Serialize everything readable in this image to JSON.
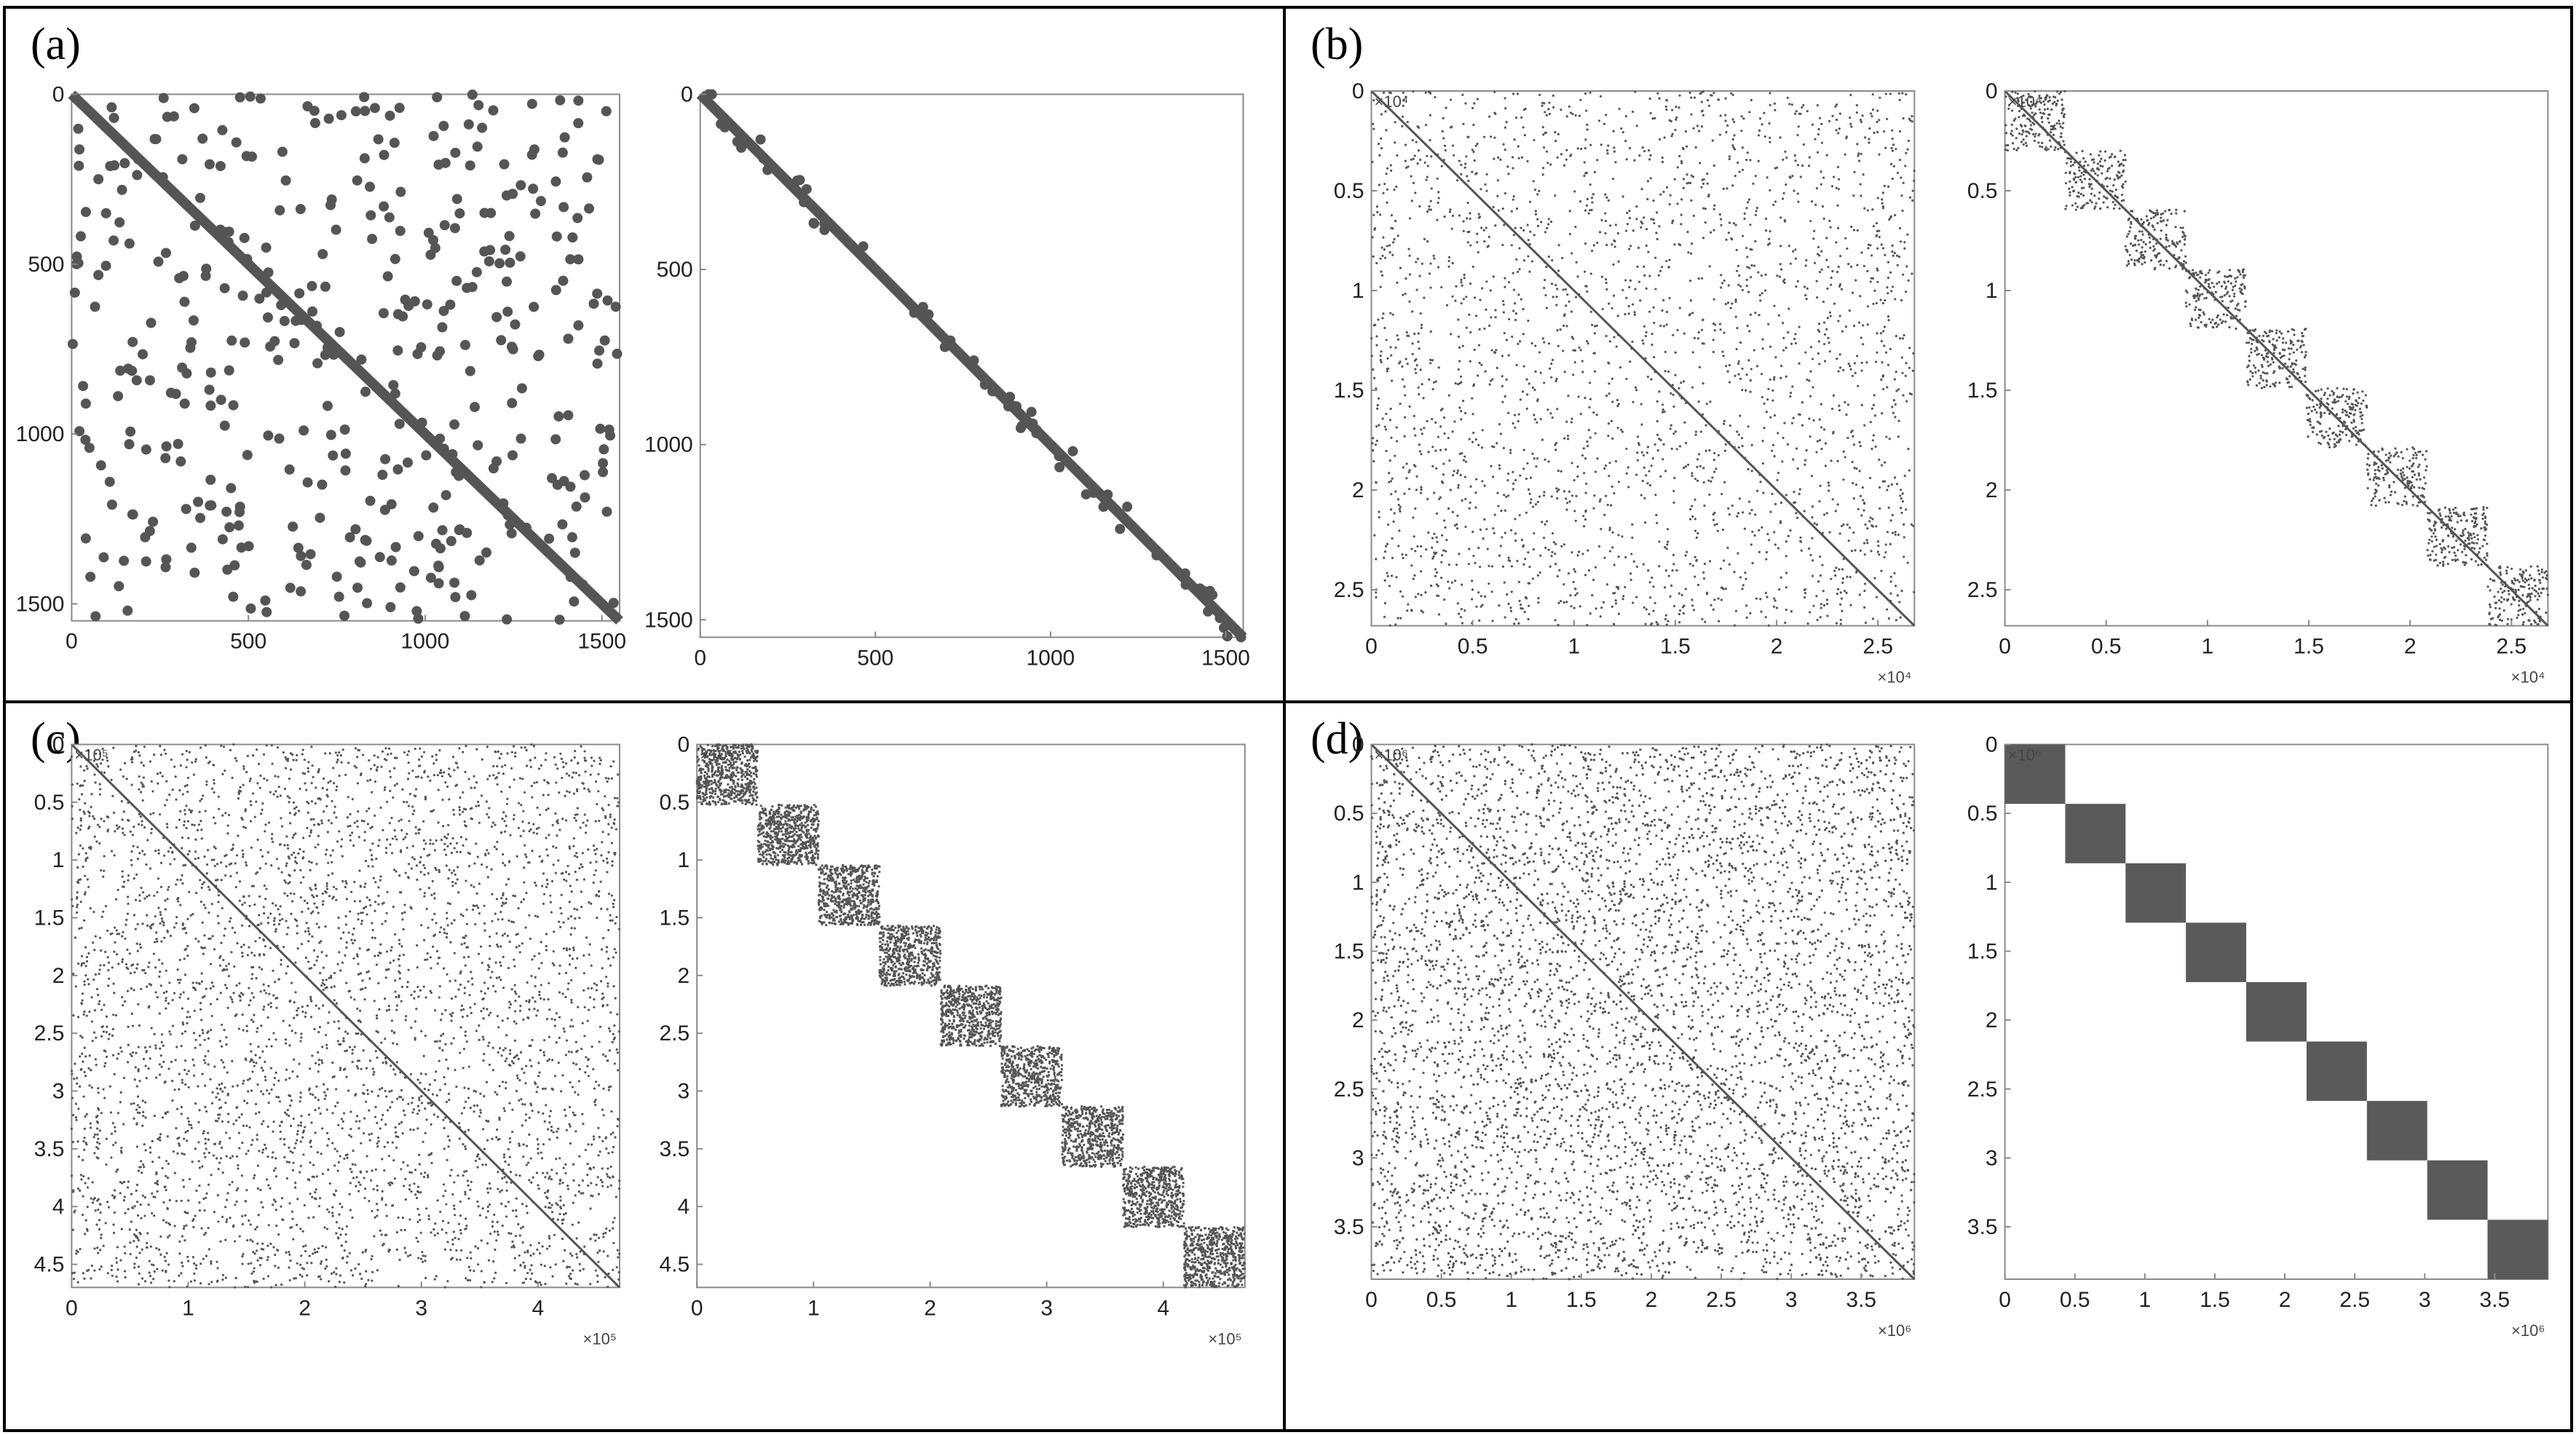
{
  "panels": [
    {
      "label": "(a)",
      "plots": [
        {
          "kind": "random",
          "n": 1550,
          "ticks": [
            "0",
            "500",
            "1000",
            "1500"
          ],
          "tick_values": [
            0,
            500,
            1000,
            1500
          ],
          "exponent": "",
          "blocks": 0,
          "nnz_dots": 420
        },
        {
          "kind": "band",
          "n": 1550,
          "ticks": [
            "0",
            "500",
            "1000",
            "1500"
          ],
          "tick_values": [
            0,
            500,
            1000,
            1500
          ],
          "exponent": "",
          "blocks": 0,
          "nnz_dots": 60
        }
      ]
    },
    {
      "label": "(b)",
      "plots": [
        {
          "kind": "random",
          "n": 2.68,
          "ticks": [
            "0",
            "0.5",
            "1",
            "1.5",
            "2",
            "2.5"
          ],
          "tick_values": [
            0,
            0.5,
            1,
            1.5,
            2,
            2.5
          ],
          "exponent": "×10⁴",
          "blocks": 0,
          "nnz_dots": 2600
        },
        {
          "kind": "blockband",
          "n": 2.68,
          "ticks": [
            "0",
            "0.5",
            "1",
            "1.5",
            "2",
            "2.5"
          ],
          "tick_values": [
            0,
            0.5,
            1,
            1.5,
            2,
            2.5
          ],
          "exponent": "×10⁴",
          "blocks": 9,
          "nnz_dots": 1600
        }
      ]
    },
    {
      "label": "(c)",
      "plots": [
        {
          "kind": "random",
          "n": 4.7,
          "ticks": [
            "0",
            "1",
            "2",
            "3",
            "4"
          ],
          "yticks": [
            "0",
            "0.5",
            "1",
            "1.5",
            "2",
            "2.5",
            "3",
            "3.5",
            "4",
            "4.5"
          ],
          "tick_values": [
            0,
            1,
            2,
            3,
            4
          ],
          "ytick_values": [
            0,
            0.5,
            1,
            1.5,
            2,
            2.5,
            3,
            3.5,
            4,
            4.5
          ],
          "exponent": "×10⁵",
          "blocks": 0,
          "nnz_dots": 4200
        },
        {
          "kind": "blocks",
          "n": 4.7,
          "ticks": [
            "0",
            "1",
            "2",
            "3",
            "4"
          ],
          "yticks": [
            "0",
            "0.5",
            "1",
            "1.5",
            "2",
            "2.5",
            "3",
            "3.5",
            "4",
            "4.5"
          ],
          "tick_values": [
            0,
            1,
            2,
            3,
            4
          ],
          "ytick_values": [
            0,
            0.5,
            1,
            1.5,
            2,
            2.5,
            3,
            3.5,
            4,
            4.5
          ],
          "exponent": "×10⁵",
          "blocks": 9,
          "nnz_dots": 5400
        }
      ]
    },
    {
      "label": "(d)",
      "plots": [
        {
          "kind": "random",
          "n": 3.88,
          "ticks": [
            "0",
            "0.5",
            "1",
            "1.5",
            "2",
            "2.5",
            "3",
            "3.5"
          ],
          "tick_values": [
            0,
            0.5,
            1,
            1.5,
            2,
            2.5,
            3,
            3.5
          ],
          "exponent": "×10⁶",
          "blocks": 0,
          "nnz_dots": 6500
        },
        {
          "kind": "solidblocks",
          "n": 3.88,
          "ticks": [
            "0",
            "0.5",
            "1",
            "1.5",
            "2",
            "2.5",
            "3",
            "3.5"
          ],
          "tick_values": [
            0,
            0.5,
            1,
            1.5,
            2,
            2.5,
            3,
            3.5
          ],
          "exponent": "×10⁶",
          "blocks": 9,
          "nnz_dots": 0
        }
      ]
    }
  ],
  "colors": {
    "marker": "#555555",
    "axis": "#8a8a8a",
    "solid_block": "#5a5a5a"
  }
}
